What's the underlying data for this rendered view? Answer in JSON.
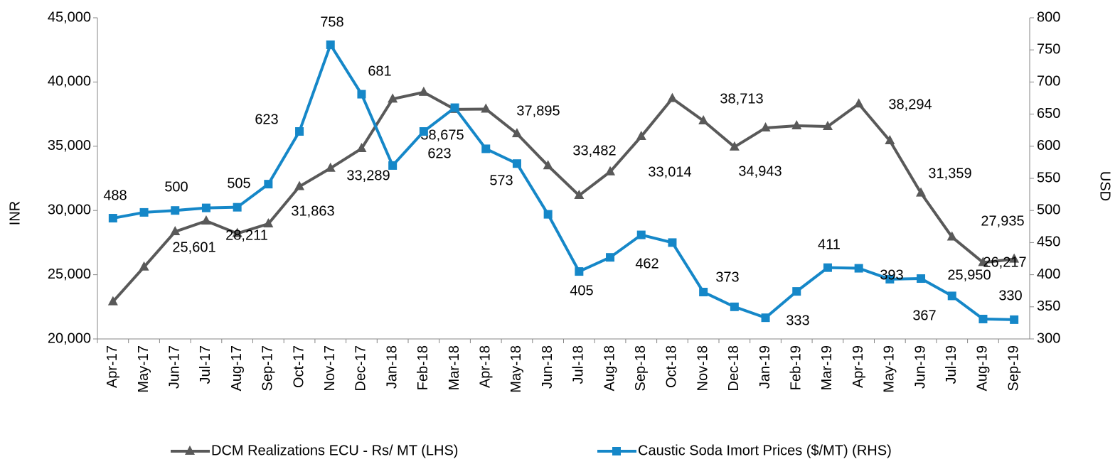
{
  "chart_data": {
    "type": "line",
    "categories": [
      "Apr-17",
      "May-17",
      "Jun-17",
      "Jul-17",
      "Aug-17",
      "Sep-17",
      "Oct-17",
      "Nov-17",
      "Dec-17",
      "Jan-18",
      "Feb-18",
      "Mar-18",
      "Apr-18",
      "May-18",
      "Jun-18",
      "Jul-18",
      "Aug-18",
      "Sep-18",
      "Oct-18",
      "Nov-18",
      "Dec-18",
      "Jan-19",
      "Feb-19",
      "Mar-19",
      "Apr-19",
      "May-19",
      "Jun-19",
      "Jul-19",
      "Aug-19",
      "Sep-19"
    ],
    "ylabel": "INR",
    "y2label": "USD",
    "ylim": [
      20000,
      45000
    ],
    "yticks": [
      {
        "value": 20000,
        "label": "20,000"
      },
      {
        "value": 25000,
        "label": "25,000"
      },
      {
        "value": 30000,
        "label": "30,000"
      },
      {
        "value": 35000,
        "label": "35,000"
      },
      {
        "value": 40000,
        "label": "40,000"
      },
      {
        "value": 45000,
        "label": "45,000"
      }
    ],
    "y2lim": [
      300,
      800
    ],
    "y2ticks": [
      300,
      350,
      400,
      450,
      500,
      550,
      600,
      650,
      700,
      750,
      800
    ],
    "legend": "bottom",
    "series": [
      {
        "name": "DCM Realizations ECU - Rs/ MT (LHS)",
        "color": "#595959",
        "marker": "triangle",
        "values": [
          22900,
          25601,
          28350,
          29180,
          28211,
          28960,
          31863,
          33289,
          34820,
          38675,
          39200,
          37870,
          37895,
          35980,
          33482,
          31170,
          33014,
          35760,
          38713,
          36980,
          34943,
          36430,
          36590,
          36540,
          38294,
          35430,
          31359,
          27935,
          25950,
          26217
        ],
        "value_labels": [
          null,
          "25,601",
          null,
          null,
          "28,211",
          null,
          "31,863",
          "33,289",
          null,
          "38,675",
          null,
          null,
          "37,895",
          null,
          "33,482",
          null,
          "33,014",
          null,
          "38,713",
          null,
          "34,943",
          null,
          null,
          null,
          "38,294",
          null,
          "31,359",
          "27,935",
          "25,950",
          "26,217"
        ]
      },
      {
        "name": "Caustic Soda Imort Prices ($/MT) (RHS)",
        "color": "#1587c8",
        "marker": "square",
        "axis": "y2",
        "values": [
          488,
          497,
          500,
          504,
          505,
          541,
          623,
          758,
          681,
          570,
          623,
          660,
          596,
          573,
          494,
          405,
          427,
          462,
          450,
          373,
          350,
          333,
          374,
          411,
          410,
          393,
          394,
          367,
          331,
          330
        ]
      }
    ]
  }
}
